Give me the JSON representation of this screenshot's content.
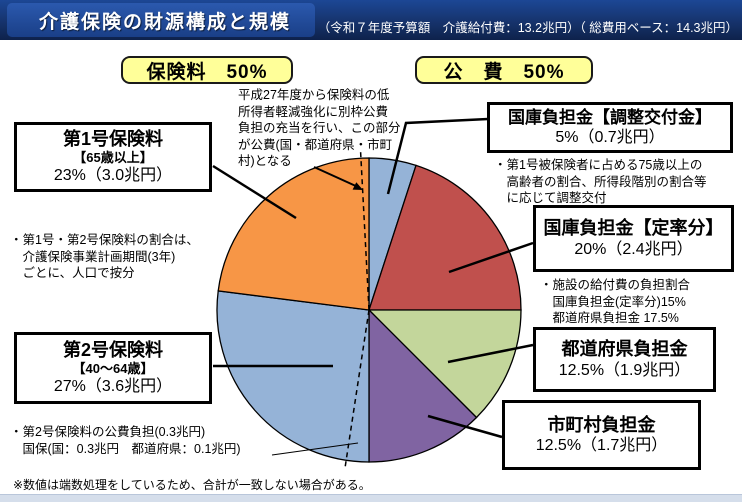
{
  "header": {
    "title": "介護保険の財源構成と規模",
    "subtitle": "（令和７年度予算額　介護給付費：13.2兆円）（ 総費用ベース：14.3兆円）"
  },
  "group_labels": {
    "premium": "保険料　50%",
    "public": "公　費　50%",
    "label_bg": "#FFFF99"
  },
  "callouts": {
    "dai1": {
      "title": "第1号保険料",
      "sub": "【65歳以上】",
      "value": "23%（3.0兆円）"
    },
    "dai2": {
      "title": "第2号保険料",
      "sub": "【40～64歳】",
      "value": "27%（3.6兆円）"
    },
    "chousei": {
      "title": "国庫負担金【調整交付金】",
      "value": "5%（0.7兆円）"
    },
    "teiritsu": {
      "title": "国庫負担金【定率分】",
      "value": "20%（2.4兆円）"
    },
    "todoufuken": {
      "title": "都道府県負担金",
      "value": "12.5%（1.9兆円）"
    },
    "shichouson": {
      "title": "市町村負担金",
      "value": "12.5%（1.7兆円）"
    }
  },
  "notes": {
    "betsuwaku": "平成27年度から保険料の低\n所得者軽減強化に別枠公費\n負担の充当を行い、この部分\nが公費(国・都道府県・市町\n村)となる",
    "anbun": "・第1号・第2号保険料の割合は、\n　介護保険事業計画期間(3年)\n　ごとに、人口で按分",
    "dai2kouhi": "・第2号保険料の公費負担(0.3兆円)\n　国保(国：0.3兆円　都道府県：0.1兆円)",
    "chousei": "・第1号被保険者に占める75歳以上の\n　高齢者の割合、所得段階別の割合等\n　に応じて調整交付",
    "shisetsu": "・施設の給付費の負担割合\n　国庫負担金(定率分)15%\n　都道府県負担金 17.5%",
    "footnote": "※数値は端数処理をしているため、合計が一致しない場合がある。"
  },
  "colors": {
    "header_navy": "#16336C",
    "label_yellow": "#FFFF99",
    "bottom_strip": "#D5DEEB"
  },
  "chart_data": {
    "type": "pie",
    "title": "介護保険の財源構成と規模",
    "total_pct": 100,
    "start_at": "12時方向から時計回り",
    "groups": [
      {
        "label": "保険料",
        "pct": 50
      },
      {
        "label": "公費",
        "pct": 50
      }
    ],
    "segments": [
      {
        "label": "国庫負担金【調整交付金】",
        "value_pct": 5,
        "amount": "0.7兆円",
        "color": "#95B3D7",
        "group": "公費"
      },
      {
        "label": "国庫負担金【定率分】",
        "value_pct": 20,
        "amount": "2.4兆円",
        "color": "#C0504D",
        "group": "公費"
      },
      {
        "label": "都道府県負担金",
        "value_pct": 12.5,
        "amount": "1.9兆円",
        "color": "#C3D69B",
        "group": "公費"
      },
      {
        "label": "市町村負担金",
        "value_pct": 12.5,
        "amount": "1.7兆円",
        "color": "#8064A2",
        "group": "公費"
      },
      {
        "label": "第2号保険料【40～64歳】",
        "value_pct": 27,
        "amount": "3.6兆円",
        "color": "#95B3D7",
        "group": "保険料"
      },
      {
        "label": "第1号保険料【65歳以上】",
        "value_pct": 23,
        "amount": "3.0兆円",
        "color": "#F79646",
        "group": "保険料"
      }
    ],
    "reference_values": {
      "介護給付費": "13.2兆円",
      "総費用ベース": "14.3兆円",
      "第2号保険料の公費負担": "0.3兆円",
      "施設給付費_国庫負担金(定率分)": "15%",
      "施設給付費_都道府県負担金": "17.5%"
    }
  }
}
